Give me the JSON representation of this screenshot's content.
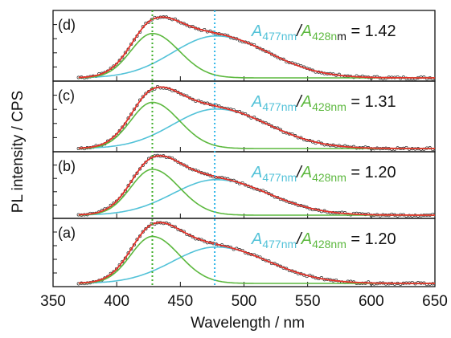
{
  "figure": {
    "ylabel": "PL intensity / CPS",
    "xlabel": "Wavelength / nm"
  },
  "colors": {
    "frame": "#111111",
    "data_points": "#222222",
    "total_fit": "#e8332a",
    "component_428": "#5cb83e",
    "component_477": "#52c2d8",
    "marker_428": "#3fae2a",
    "marker_477": "#2fb6e8"
  },
  "chart_data": {
    "type": "line",
    "stacked_panels": true,
    "x_range": [
      350,
      650
    ],
    "x_ticks": [
      350,
      400,
      450,
      500,
      550,
      600,
      650
    ],
    "x_unit": "nm",
    "y_tick_labels_shown": false,
    "data_x_range": [
      370,
      650
    ],
    "vertical_markers": [
      {
        "x": 428,
        "style": "dotted",
        "color": "#3fae2a"
      },
      {
        "x": 477,
        "style": "dotted",
        "color": "#2fb6e8"
      }
    ],
    "component_428_nm": {
      "center": 428,
      "width_left": 24,
      "width_right": 30
    },
    "component_477_nm": {
      "center": 478,
      "width_left": 48,
      "width_right": 58
    },
    "panels": [
      {
        "label": "(d)",
        "annotation": {
          "num_symbol": "A",
          "num_sub": "477nm",
          "slash": "/",
          "den_symbol": "A",
          "den_sub_green": "428n",
          "den_sub_black": "m",
          "equals": "= 1.42"
        },
        "ratio": 1.42,
        "amp_428": 0.73,
        "amp_477": 0.69
      },
      {
        "label": "(c)",
        "annotation": {
          "num_symbol": "A",
          "num_sub": "477nm",
          "slash": "/",
          "den_symbol": "A",
          "den_sub_green": "428nm",
          "den_sub_black": "",
          "equals": "= 1.31"
        },
        "ratio": 1.31,
        "amp_428": 0.76,
        "amp_477": 0.65
      },
      {
        "label": "(b)",
        "annotation": {
          "num_symbol": "A",
          "num_sub": "477nm",
          "slash": "/",
          "den_symbol": "A",
          "den_sub_green": "428nm",
          "den_sub_black": "",
          "equals": "= 1.20"
        },
        "ratio": 1.2,
        "amp_428": 0.8,
        "amp_477": 0.62
      },
      {
        "label": "(a)",
        "annotation": {
          "num_symbol": "A",
          "num_sub": "477nm",
          "slash": "/",
          "den_symbol": "A",
          "den_sub_green": "428nm",
          "den_sub_black": "",
          "equals": "= 1.20"
        },
        "ratio": 1.2,
        "amp_428": 0.8,
        "amp_477": 0.62
      }
    ]
  }
}
